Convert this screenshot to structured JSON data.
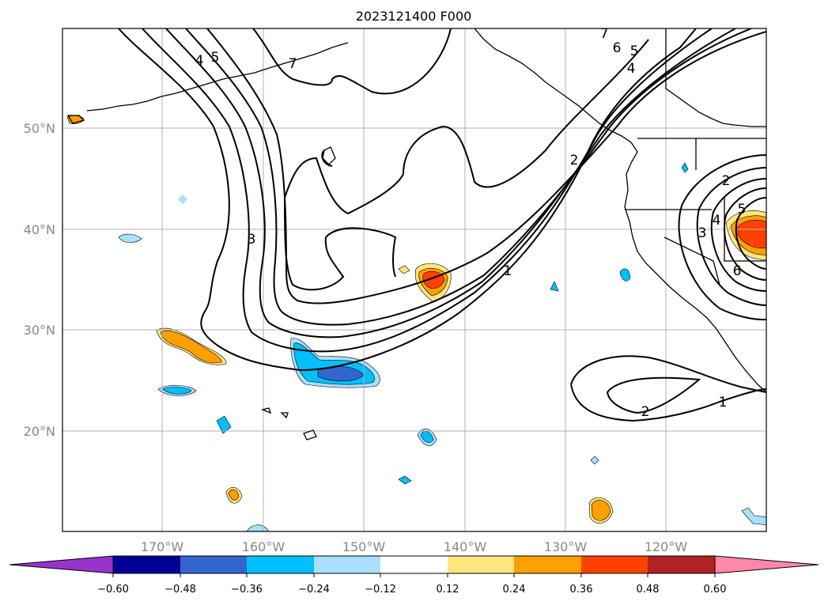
{
  "title": "2023121400 F000",
  "map": {
    "lat_ticks": [
      "50°N",
      "40°N",
      "30°N",
      "20°N"
    ],
    "lon_ticks": [
      "170°W",
      "160°W",
      "150°W",
      "140°W",
      "130°W",
      "120°W"
    ],
    "grid": true,
    "contour_color": "#000000",
    "contour_labels": [
      {
        "text": "4"
      },
      {
        "text": "5"
      },
      {
        "text": "7"
      },
      {
        "text": "3"
      },
      {
        "text": "7"
      },
      {
        "text": "6"
      },
      {
        "text": "5"
      },
      {
        "text": "4"
      },
      {
        "text": "2"
      },
      {
        "text": "1"
      },
      {
        "text": "2"
      },
      {
        "text": "1"
      },
      {
        "text": "2"
      },
      {
        "text": "3"
      },
      {
        "text": "4"
      },
      {
        "text": "5"
      },
      {
        "text": "6"
      }
    ]
  },
  "colorbar": {
    "colors": [
      "#9933cc",
      "#000099",
      "#3366cc",
      "#00bfff",
      "#aadfff",
      "#ffffff",
      "#ffe680",
      "#ffa000",
      "#ff4000",
      "#b22222",
      "#ff88aa"
    ],
    "labels": [
      "−0.60",
      "−0.48",
      "−0.36",
      "−0.24",
      "−0.12",
      "0.12",
      "0.24",
      "0.36",
      "0.48",
      "0.60"
    ]
  }
}
